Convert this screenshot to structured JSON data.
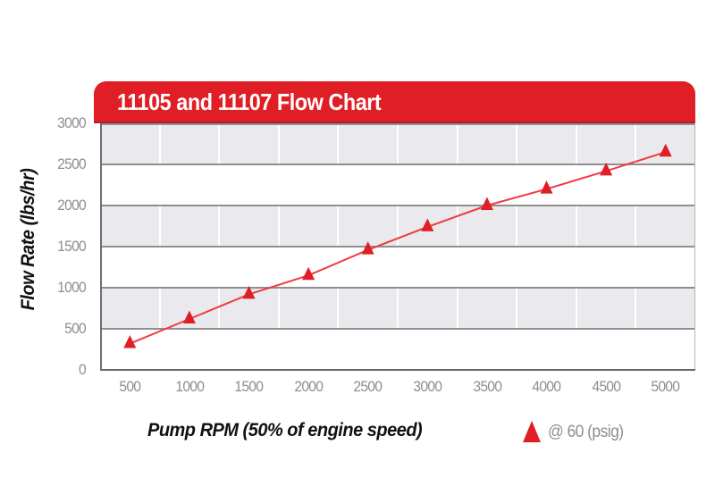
{
  "header": {
    "title": "11105 and 11107 Flow Chart"
  },
  "chart_data": {
    "type": "line",
    "title": "11105 and 11107 Flow Chart",
    "xlabel": "Pump RPM (50% of engine speed)",
    "ylabel": "Flow Rate (lbs/hr)",
    "x": [
      500,
      1000,
      1500,
      2000,
      2500,
      3000,
      3500,
      4000,
      4500,
      5000
    ],
    "xtick_labels": [
      "500",
      "1000",
      "1500",
      "2000",
      "2500",
      "3000",
      "3500",
      "4000",
      "4500",
      "5000"
    ],
    "ytick_labels_top_to_bottom": [
      "3000",
      "2500",
      "2000",
      "1500",
      "1000",
      "500",
      "0"
    ],
    "ylim": [
      0,
      3000
    ],
    "ytick_interval": 500,
    "series": [
      {
        "name": "@ 60 (psig)",
        "marker": "triangle",
        "values": [
          320,
          620,
          920,
          1150,
          1460,
          1740,
          2000,
          2200,
          2420,
          2650
        ]
      }
    ],
    "legend_position": "bottom-right",
    "grid": "horizontal gray lines every 500; white vertical lines at category boundaries; alternating gray/white bands"
  },
  "legend": {
    "label": "@ 60 (psig)"
  },
  "colors": {
    "banner_red": "#e01e25",
    "banner_edge": "#b81a1f",
    "marker_red": "#e01e25",
    "line_red": "#ee3a41",
    "band_gray": "#eaeaee",
    "band_white": "#ffffff",
    "hgrid_gray": "#8f8f8f",
    "tick_text_gray": "#8e8e8e",
    "axis_text_black": "#111111",
    "background": "#ffffff"
  }
}
